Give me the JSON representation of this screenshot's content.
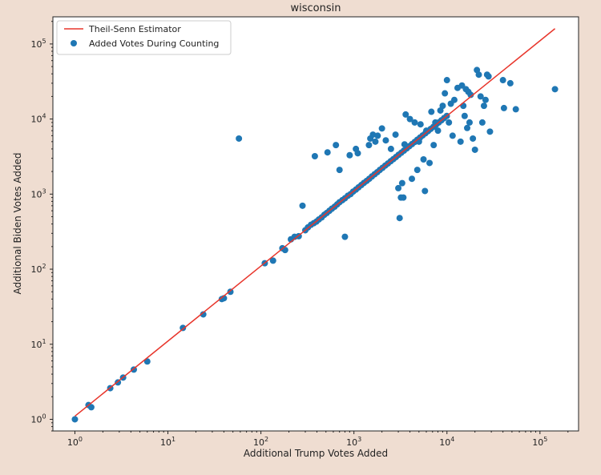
{
  "colors": {
    "background": "#efddd1",
    "plot_background": "#ffffff",
    "fit_line": "#e8352b",
    "points": "#1f77b4"
  },
  "chart_data": {
    "type": "scatter",
    "title": "wisconsin",
    "xlabel": "Additional Trump Votes Added",
    "ylabel": "Additional Biden Votes Added",
    "xscale": "log",
    "yscale": "log",
    "xlim": [
      0.58,
      260000
    ],
    "ylim": [
      0.7,
      230000
    ],
    "grid": false,
    "legend_position": "top-left",
    "x_ticks": [
      {
        "value": 1,
        "base": "10",
        "exp": "0"
      },
      {
        "value": 10,
        "base": "10",
        "exp": "1"
      },
      {
        "value": 100,
        "base": "10",
        "exp": "2"
      },
      {
        "value": 1000,
        "base": "10",
        "exp": "3"
      },
      {
        "value": 10000,
        "base": "10",
        "exp": "4"
      },
      {
        "value": 100000,
        "base": "10",
        "exp": "5"
      }
    ],
    "y_ticks": [
      {
        "value": 1,
        "base": "10",
        "exp": "0"
      },
      {
        "value": 10,
        "base": "10",
        "exp": "1"
      },
      {
        "value": 100,
        "base": "10",
        "exp": "2"
      },
      {
        "value": 1000,
        "base": "10",
        "exp": "3"
      },
      {
        "value": 10000,
        "base": "10",
        "exp": "4"
      },
      {
        "value": 100000,
        "base": "10",
        "exp": "5"
      }
    ],
    "series": [
      {
        "name": "Theil-Senn Estimator",
        "kind": "line",
        "x": [
          1,
          145000
        ],
        "y": [
          1.1,
          160000
        ]
      },
      {
        "name": "Added Votes During Counting",
        "kind": "scatter",
        "points": [
          [
            1,
            1
          ],
          [
            1.4,
            1.55
          ],
          [
            1.5,
            1.45
          ],
          [
            2.4,
            2.6
          ],
          [
            2.9,
            3.1
          ],
          [
            3.3,
            3.6
          ],
          [
            4.3,
            4.6
          ],
          [
            6,
            5.9
          ],
          [
            14.5,
            16.5
          ],
          [
            24,
            25
          ],
          [
            38,
            40
          ],
          [
            40,
            41
          ],
          [
            47,
            50
          ],
          [
            58,
            5500
          ],
          [
            110,
            120
          ],
          [
            135,
            130
          ],
          [
            170,
            190
          ],
          [
            182,
            180
          ],
          [
            210,
            250
          ],
          [
            230,
            270
          ],
          [
            255,
            275
          ],
          [
            280,
            700
          ],
          [
            300,
            330
          ],
          [
            320,
            360
          ],
          [
            345,
            390
          ],
          [
            370,
            410
          ],
          [
            395,
            430
          ],
          [
            420,
            460
          ],
          [
            450,
            490
          ],
          [
            480,
            530
          ],
          [
            510,
            560
          ],
          [
            545,
            600
          ],
          [
            580,
            640
          ],
          [
            620,
            680
          ],
          [
            660,
            730
          ],
          [
            700,
            780
          ],
          [
            750,
            830
          ],
          [
            800,
            880
          ],
          [
            860,
            950
          ],
          [
            920,
            1000
          ],
          [
            980,
            1080
          ],
          [
            1050,
            1150
          ],
          [
            1120,
            1230
          ],
          [
            1200,
            1320
          ],
          [
            1280,
            1410
          ],
          [
            1370,
            1500
          ],
          [
            1460,
            1600
          ],
          [
            1560,
            1720
          ],
          [
            1670,
            1840
          ],
          [
            1780,
            1960
          ],
          [
            1900,
            2100
          ],
          [
            2030,
            2240
          ],
          [
            2170,
            2400
          ],
          [
            2320,
            2560
          ],
          [
            2480,
            2740
          ],
          [
            2650,
            2920
          ],
          [
            2830,
            3120
          ],
          [
            3020,
            3340
          ],
          [
            3230,
            3560
          ],
          [
            3450,
            3800
          ],
          [
            3690,
            4060
          ],
          [
            3940,
            4340
          ],
          [
            4210,
            4640
          ],
          [
            4500,
            4950
          ],
          [
            4800,
            5300
          ],
          [
            5130,
            5660
          ],
          [
            5480,
            6050
          ],
          [
            5860,
            6460
          ],
          [
            6260,
            6900
          ],
          [
            6690,
            7380
          ],
          [
            7150,
            7880
          ],
          [
            7640,
            8420
          ],
          [
            8160,
            9000
          ],
          [
            8720,
            9620
          ],
          [
            9320,
            10300
          ],
          [
            9960,
            11000
          ],
          [
            380,
            3200
          ],
          [
            520,
            3600
          ],
          [
            640,
            4500
          ],
          [
            700,
            2100
          ],
          [
            800,
            270
          ],
          [
            900,
            3300
          ],
          [
            1050,
            4000
          ],
          [
            1100,
            3500
          ],
          [
            1450,
            4500
          ],
          [
            1500,
            5500
          ],
          [
            1600,
            6200
          ],
          [
            1700,
            5000
          ],
          [
            1800,
            6000
          ],
          [
            2000,
            7500
          ],
          [
            2200,
            5200
          ],
          [
            2500,
            4000
          ],
          [
            2800,
            6200
          ],
          [
            3000,
            1200
          ],
          [
            3100,
            480
          ],
          [
            3200,
            900
          ],
          [
            3300,
            1400
          ],
          [
            3400,
            900
          ],
          [
            3500,
            4600
          ],
          [
            3600,
            11500
          ],
          [
            4000,
            10000
          ],
          [
            4200,
            1600
          ],
          [
            4500,
            9000
          ],
          [
            4800,
            2100
          ],
          [
            5000,
            5000
          ],
          [
            5200,
            8500
          ],
          [
            5600,
            2900
          ],
          [
            5800,
            1100
          ],
          [
            6000,
            7000
          ],
          [
            6500,
            2600
          ],
          [
            6800,
            12500
          ],
          [
            7200,
            4500
          ],
          [
            7500,
            9000
          ],
          [
            8000,
            7000
          ],
          [
            8500,
            13000
          ],
          [
            9000,
            15000
          ],
          [
            9500,
            22000
          ],
          [
            10000,
            33000
          ],
          [
            10500,
            9000
          ],
          [
            11000,
            16000
          ],
          [
            11500,
            6000
          ],
          [
            12000,
            18000
          ],
          [
            13000,
            26000
          ],
          [
            14000,
            5000
          ],
          [
            14500,
            28000
          ],
          [
            15000,
            15000
          ],
          [
            15500,
            11000
          ],
          [
            16000,
            25000
          ],
          [
            16500,
            7600
          ],
          [
            17000,
            23000
          ],
          [
            17500,
            9000
          ],
          [
            18000,
            21000
          ],
          [
            19000,
            5500
          ],
          [
            20000,
            3900
          ],
          [
            21000,
            45000
          ],
          [
            22000,
            39000
          ],
          [
            23000,
            20000
          ],
          [
            24000,
            9000
          ],
          [
            25000,
            15000
          ],
          [
            26000,
            18000
          ],
          [
            27000,
            39000
          ],
          [
            28000,
            37000
          ],
          [
            29000,
            6800
          ],
          [
            40000,
            33000
          ],
          [
            41000,
            14000
          ],
          [
            48000,
            30000
          ],
          [
            55000,
            13500
          ],
          [
            145000,
            25000
          ]
        ]
      }
    ]
  }
}
